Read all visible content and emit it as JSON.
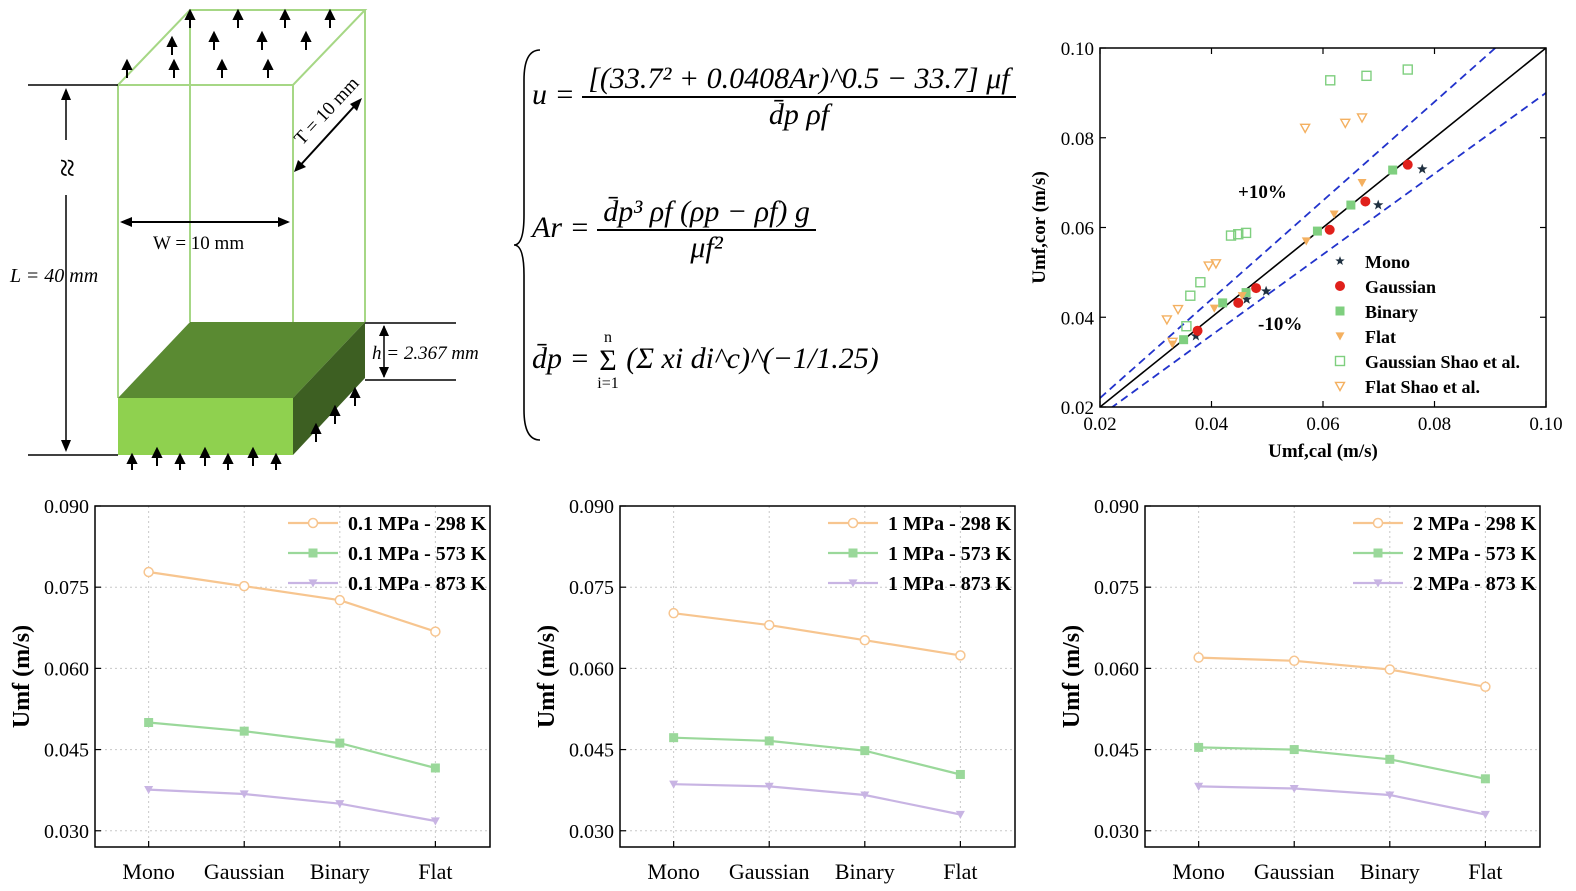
{
  "schematic": {
    "length_label": "L = 40 mm",
    "width_label": "W = 10 mm",
    "thickness_label": "T = 10 mm",
    "height_label": "h = 2.367 mm",
    "break_symbol": "≈",
    "colors": {
      "box_edge": "#a6d785",
      "bed_front": "#8fd14f",
      "bed_top": "#5a8a32",
      "bed_side": "#3d5f22"
    }
  },
  "equations": {
    "eq1_lhs": "u =",
    "eq1_num": "[(33.7² + 0.0408Ar)^0.5 − 33.7] μf",
    "eq1_den": "d̄p ρf",
    "eq2_lhs": "Ar =",
    "eq2_num": "d̄p³ ρf (ρp − ρf) g",
    "eq2_den": "μf²",
    "eq3_lhs": "d̄p =",
    "eq3_rhs": "(Σ xi di^c)^(−1/1.25)",
    "eq3_sum_top": "n",
    "eq3_sum_bottom": "i=1"
  },
  "chart_data": [
    {
      "type": "scatter",
      "xlabel": "Umf,cal (m/s)",
      "ylabel": "Umf,cor (m/s)",
      "xlim": [
        0.02,
        0.1
      ],
      "ylim": [
        0.02,
        0.1
      ],
      "xticks": [
        "0.02",
        "0.04",
        "0.06",
        "0.08",
        "0.10"
      ],
      "yticks": [
        "0.02",
        "0.04",
        "0.06",
        "0.08",
        "0.10"
      ],
      "annotations": [
        "+10%",
        "-10%"
      ],
      "reference_lines": [
        {
          "slope": 1.0,
          "style": "solid"
        },
        {
          "slope": 1.1,
          "style": "dashed"
        },
        {
          "slope": 0.9,
          "style": "dashed"
        }
      ],
      "legend_position": "bottom-right",
      "series": [
        {
          "name": "Mono",
          "marker": "star",
          "color": "#1f3040",
          "x": [
            0.0372,
            0.0463,
            0.0498,
            0.0699,
            0.0778
          ],
          "y": [
            0.0358,
            0.044,
            0.0458,
            0.065,
            0.073
          ]
        },
        {
          "name": "Gaussian",
          "marker": "circle",
          "color": "#e0201b",
          "x": [
            0.0375,
            0.0448,
            0.048,
            0.0612,
            0.0676,
            0.0752
          ],
          "y": [
            0.037,
            0.0432,
            0.0465,
            0.0595,
            0.0658,
            0.074
          ]
        },
        {
          "name": "Binary",
          "marker": "square",
          "color": "#7fcf7f",
          "x": [
            0.035,
            0.042,
            0.0462,
            0.059,
            0.065,
            0.0725
          ],
          "y": [
            0.035,
            0.0432,
            0.0455,
            0.0592,
            0.065,
            0.0728
          ]
        },
        {
          "name": "Flat",
          "marker": "triangle-down",
          "color": "#f4b060",
          "x": [
            0.033,
            0.0405,
            0.0455,
            0.057,
            0.062,
            0.067
          ],
          "y": [
            0.034,
            0.042,
            0.0448,
            0.057,
            0.063,
            0.07
          ]
        },
        {
          "name": "Gaussian Shao et al.",
          "marker": "square-open",
          "color": "#7fcf7f",
          "x": [
            0.0355,
            0.0362,
            0.038,
            0.0435,
            0.0448,
            0.0462,
            0.0613,
            0.0678,
            0.0752
          ],
          "y": [
            0.038,
            0.0448,
            0.0478,
            0.0582,
            0.0585,
            0.0588,
            0.0928,
            0.0938,
            0.0952
          ]
        },
        {
          "name": "Flat Shao et al.",
          "marker": "triangle-down-open",
          "color": "#f4b060",
          "x": [
            0.032,
            0.033,
            0.034,
            0.0395,
            0.0408,
            0.0568,
            0.064,
            0.067
          ],
          "y": [
            0.0395,
            0.0345,
            0.0418,
            0.0515,
            0.052,
            0.0822,
            0.0833,
            0.0845
          ]
        }
      ]
    },
    {
      "type": "line",
      "categories": [
        "Mono",
        "Gaussian",
        "Binary",
        "Flat"
      ],
      "ylabel": "Umf (m/s)",
      "ylim": [
        0.027,
        0.09
      ],
      "yticks": [
        "0.030",
        "0.045",
        "0.060",
        "0.075",
        "0.090"
      ],
      "legend_position": "top-right",
      "series": [
        {
          "name": "0.1 MPa - 298 K",
          "marker": "circle",
          "color": "#f7c58f",
          "values": [
            0.0778,
            0.0752,
            0.0726,
            0.0668
          ]
        },
        {
          "name": "0.1 MPa - 573 K",
          "marker": "square",
          "color": "#9ad89a",
          "values": [
            0.05,
            0.0484,
            0.0462,
            0.0416
          ]
        },
        {
          "name": "0.1 MPa - 873 K",
          "marker": "triangle-down",
          "color": "#c8b4e3",
          "values": [
            0.0376,
            0.0368,
            0.035,
            0.0318
          ]
        }
      ]
    },
    {
      "type": "line",
      "categories": [
        "Mono",
        "Gaussian",
        "Binary",
        "Flat"
      ],
      "ylabel": "Umf (m/s)",
      "ylim": [
        0.027,
        0.09
      ],
      "yticks": [
        "0.030",
        "0.045",
        "0.060",
        "0.075",
        "0.090"
      ],
      "legend_position": "top-right",
      "series": [
        {
          "name": "1 MPa - 298 K",
          "marker": "circle",
          "color": "#f7c58f",
          "values": [
            0.0702,
            0.068,
            0.0652,
            0.0624
          ]
        },
        {
          "name": "1 MPa - 573 K",
          "marker": "square",
          "color": "#9ad89a",
          "values": [
            0.0472,
            0.0466,
            0.0448,
            0.0404
          ]
        },
        {
          "name": "1 MPa - 873 K",
          "marker": "triangle-down",
          "color": "#c8b4e3",
          "values": [
            0.0386,
            0.0382,
            0.0366,
            0.033
          ]
        }
      ]
    },
    {
      "type": "line",
      "categories": [
        "Mono",
        "Gaussian",
        "Binary",
        "Flat"
      ],
      "ylabel": "Umf (m/s)",
      "ylim": [
        0.027,
        0.09
      ],
      "yticks": [
        "0.030",
        "0.045",
        "0.060",
        "0.075",
        "0.090"
      ],
      "legend_position": "top-right",
      "series": [
        {
          "name": "2 MPa - 298 K",
          "marker": "circle",
          "color": "#f7c58f",
          "values": [
            0.062,
            0.0614,
            0.0598,
            0.0566
          ]
        },
        {
          "name": "2 MPa - 573 K",
          "marker": "square",
          "color": "#9ad89a",
          "values": [
            0.0454,
            0.045,
            0.0432,
            0.0396
          ]
        },
        {
          "name": "2 MPa - 873 K",
          "marker": "triangle-down",
          "color": "#c8b4e3",
          "values": [
            0.0382,
            0.0378,
            0.0366,
            0.033
          ]
        }
      ]
    }
  ]
}
